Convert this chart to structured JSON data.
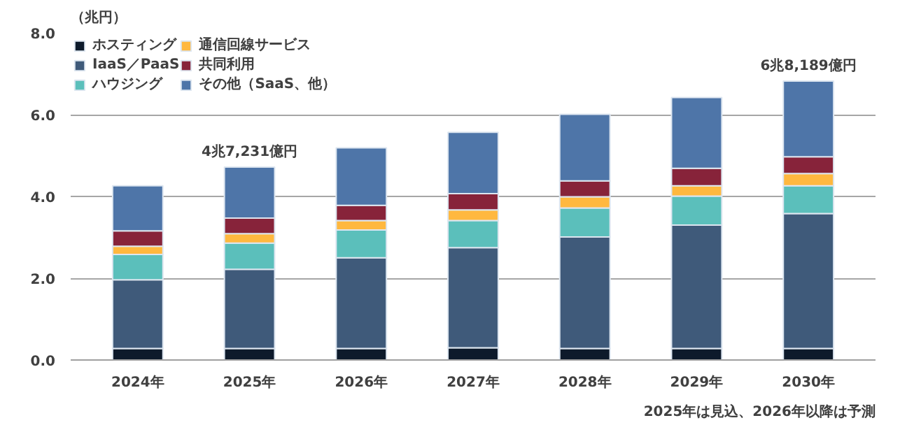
{
  "chart_data": {
    "type": "bar",
    "stacked": true,
    "ylabel": "（兆円）",
    "categories": [
      "2024年",
      "2025年",
      "2026年",
      "2027年",
      "2028年",
      "2029年",
      "2030年"
    ],
    "series": [
      {
        "name": "ホスティング",
        "color": "#0d1a2b",
        "values": [
          0.28,
          0.28,
          0.28,
          0.3,
          0.28,
          0.28,
          0.28
        ]
      },
      {
        "name": "IaaS／PaaS",
        "color": "#3f5a7a",
        "values": [
          1.68,
          1.94,
          2.22,
          2.45,
          2.73,
          3.02,
          3.3
        ]
      },
      {
        "name": "ハウジング",
        "color": "#5bbfbb",
        "values": [
          0.62,
          0.64,
          0.68,
          0.66,
          0.71,
          0.71,
          0.68
        ]
      },
      {
        "name": "通信回線サービス",
        "color": "#ffb83f",
        "values": [
          0.2,
          0.23,
          0.23,
          0.26,
          0.27,
          0.25,
          0.3
        ]
      },
      {
        "name": "共同利用",
        "color": "#87233a",
        "values": [
          0.38,
          0.38,
          0.37,
          0.4,
          0.39,
          0.43,
          0.41
        ]
      },
      {
        "name": "その他（SaaS、他）",
        "color": "#4e75a8",
        "values": [
          1.1,
          1.25,
          1.41,
          1.5,
          1.63,
          1.73,
          1.85
        ]
      }
    ],
    "ylim": [
      0,
      8
    ],
    "yticks": [
      {
        "value": 0,
        "label": "0.0"
      },
      {
        "value": 2,
        "label": "2.0"
      },
      {
        "value": 4,
        "label": "4.0"
      },
      {
        "value": 6,
        "label": "6.0"
      },
      {
        "value": 8,
        "label": "8.0"
      }
    ],
    "grid": "y",
    "legend": "top left",
    "annotations": [
      {
        "text": "4兆7,231億円",
        "x": "2025年",
        "y": 4.7231
      },
      {
        "text": "6兆8,189億円",
        "x": "2030年",
        "y": 6.8189
      },
      "2025年は見込、2026年以降は予測"
    ]
  }
}
